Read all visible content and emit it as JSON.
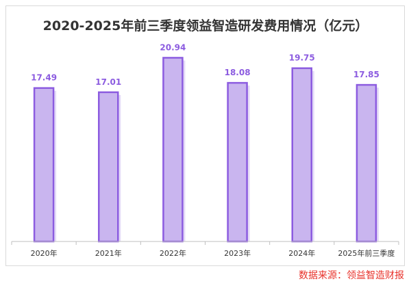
{
  "title": "2020-2025年前三季度领益智造研发费用情况（亿元）",
  "source": "数据来源：领益智造财报",
  "colors": {
    "bar_fill": "#c9b5ef",
    "bar_border": "#8c5ce0",
    "value_label": "#8c5ce0",
    "axis": "#bfbfbf",
    "tick_label": "#333333",
    "source": "#e8312a"
  },
  "chart_data": {
    "type": "bar",
    "title": "2020-2025年前三季度领益智造研发费用情况（亿元）",
    "categories": [
      "2020年",
      "2021年",
      "2022年",
      "2023年",
      "2024年",
      "2025年前三季度"
    ],
    "values": [
      17.49,
      17.01,
      20.94,
      18.08,
      19.75,
      17.85
    ],
    "value_labels": [
      "17.49",
      "17.01",
      "20.94",
      "18.08",
      "19.75",
      "17.85"
    ],
    "xlabel": "",
    "ylabel": "",
    "ylim": [
      0,
      22.3
    ],
    "grid": false,
    "legend": "none",
    "data_labels": "above-bars"
  }
}
